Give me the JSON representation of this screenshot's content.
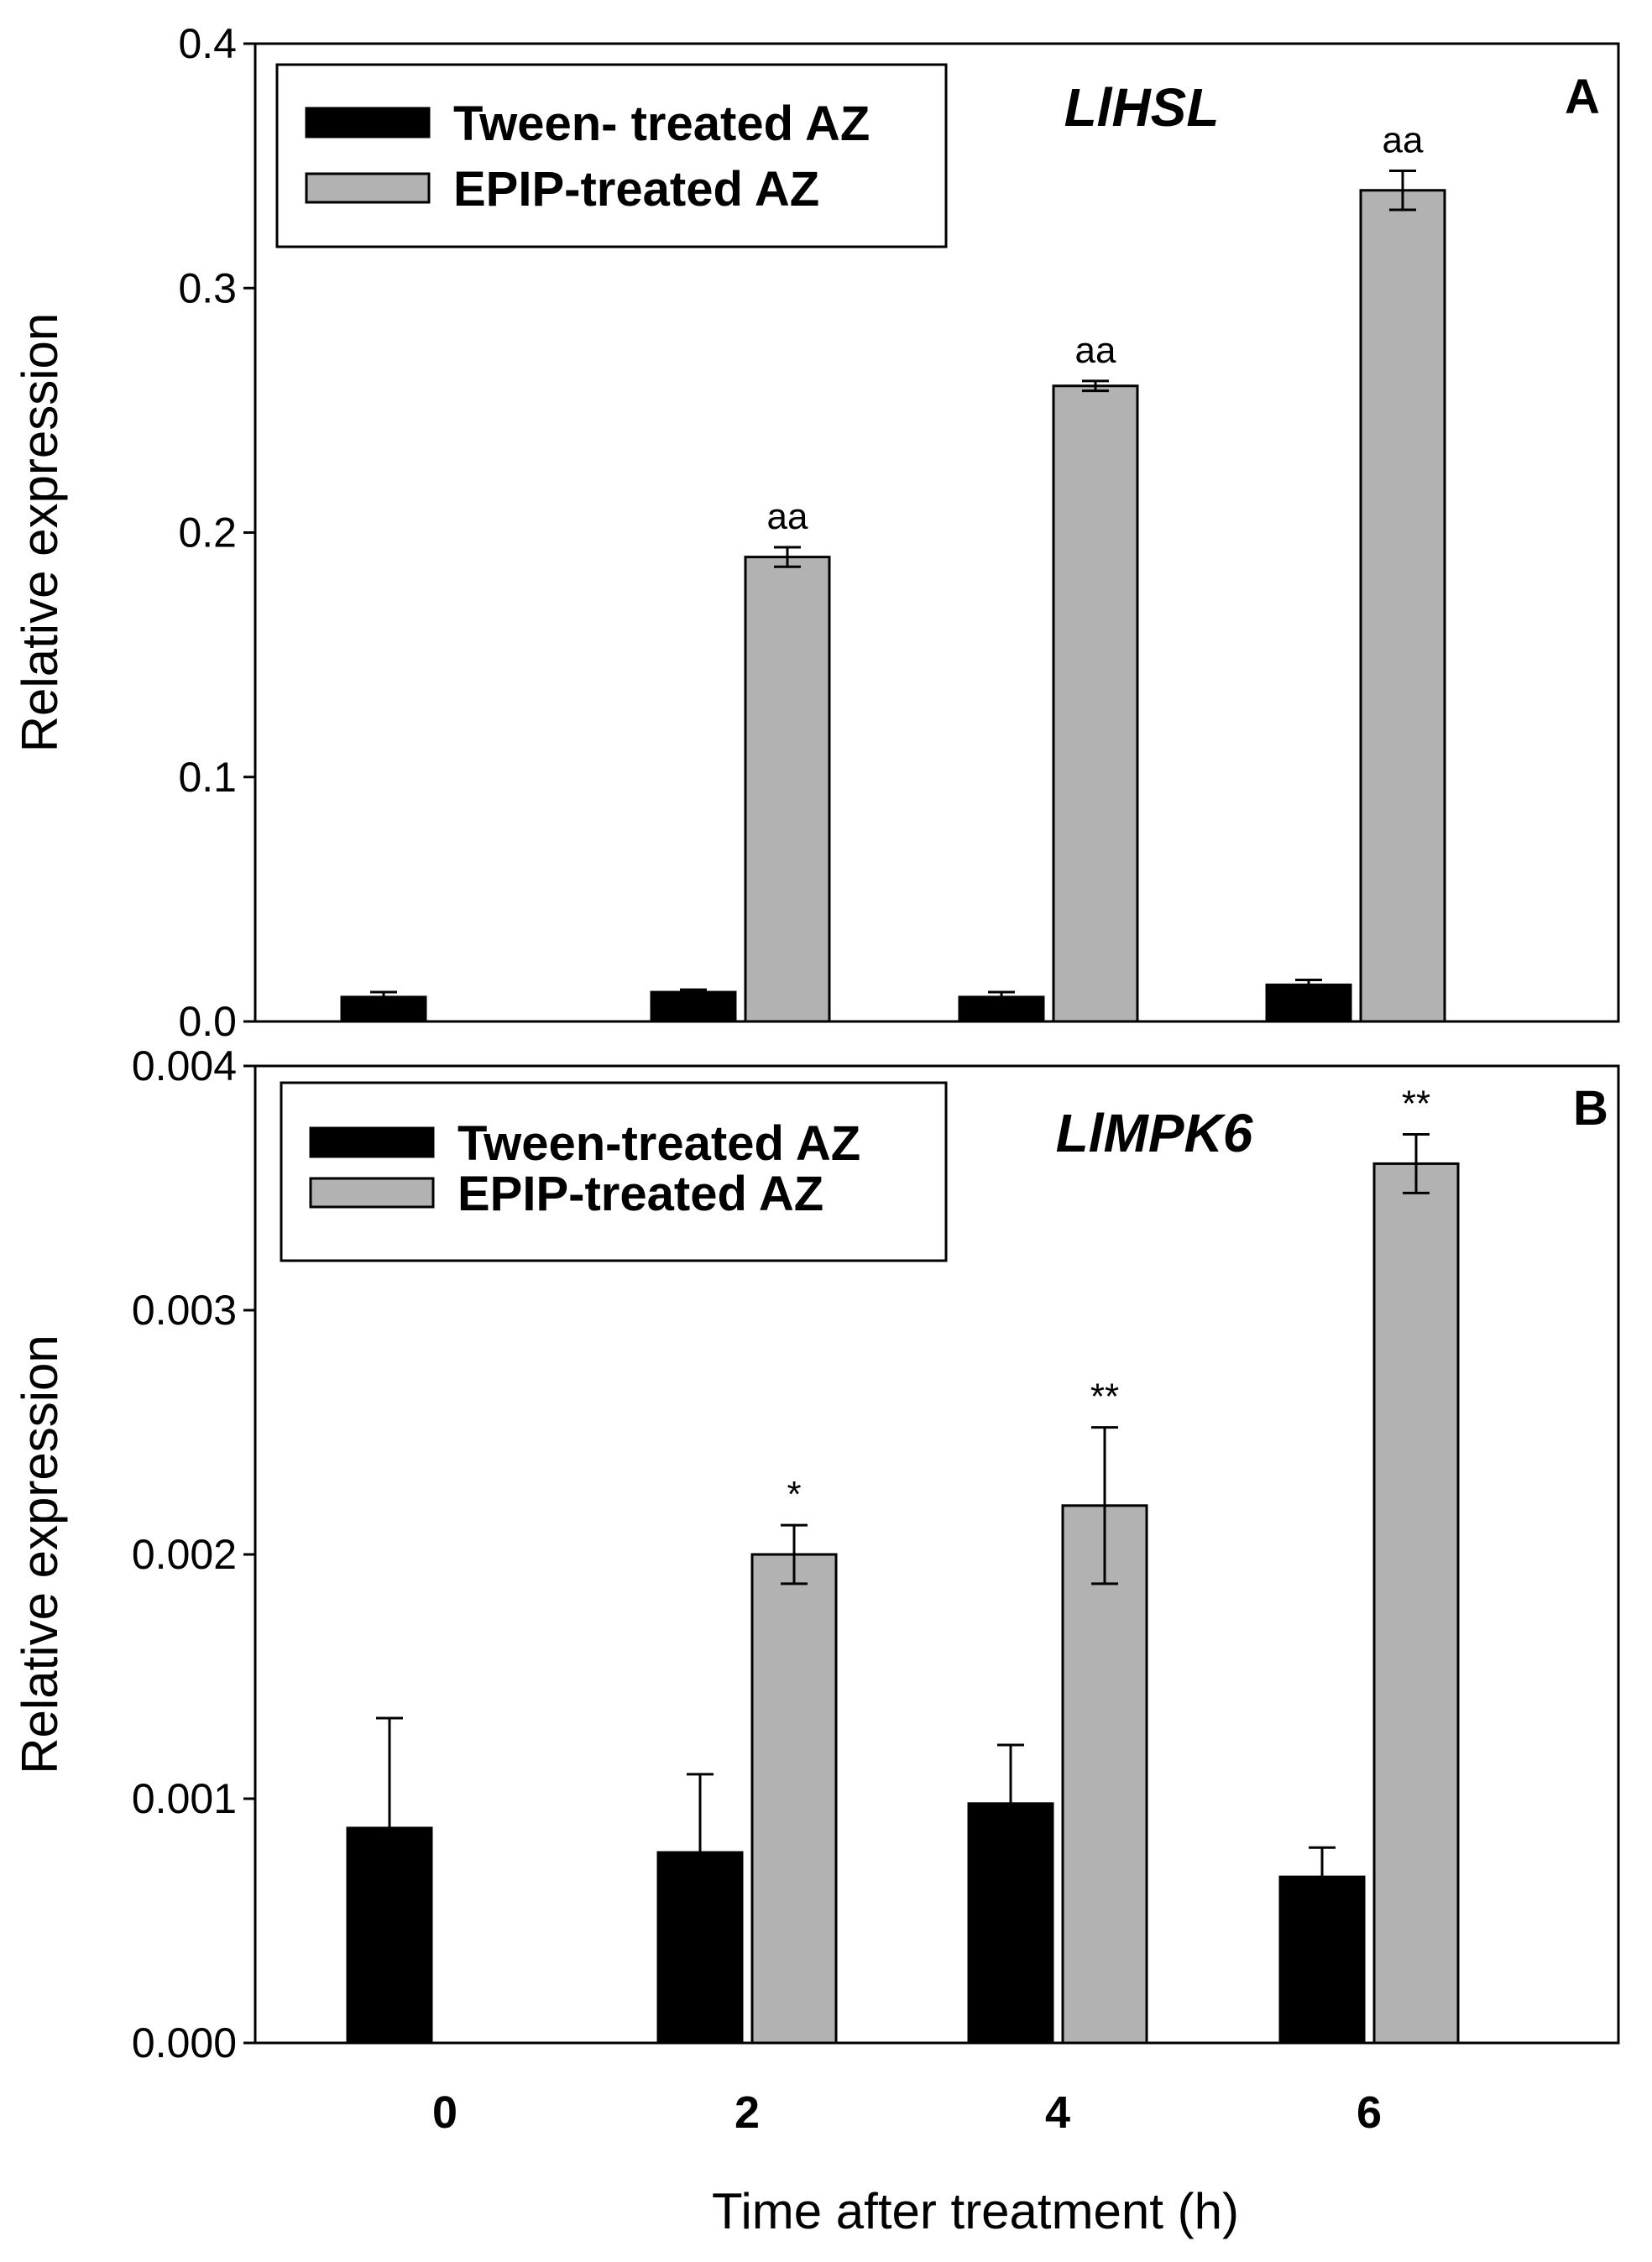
{
  "chart_data": [
    {
      "type": "bar",
      "panel": "A",
      "gene": "LlHSL",
      "ylabel": "Relative expression",
      "ylim": [
        0,
        0.4
      ],
      "yticks": [
        "0.0",
        "0.1",
        "0.2",
        "0.3",
        "0.4"
      ],
      "categories": [
        "0",
        "2",
        "4",
        "6"
      ],
      "series": [
        {
          "name": "Tween- treated AZ",
          "color": "#000000",
          "values": [
            0.01,
            0.012,
            0.01,
            0.015
          ],
          "errors": [
            0.002,
            0.001,
            0.002,
            0.002
          ]
        },
        {
          "name": "EPIP-treated AZ",
          "color": "#b2b2b2",
          "values": [
            null,
            0.19,
            0.26,
            0.34
          ],
          "errors": [
            null,
            0.004,
            0.002,
            0.008
          ]
        }
      ],
      "annotations": [
        null,
        "aa",
        "aa",
        "aa"
      ]
    },
    {
      "type": "bar",
      "panel": "B",
      "gene": "LlMPK6",
      "ylabel": "Relative expression",
      "xlabel": "Time after treatment (h)",
      "ylim": [
        0,
        0.004
      ],
      "yticks": [
        "0.000",
        "0.001",
        "0.002",
        "0.003",
        "0.004"
      ],
      "categories": [
        "0",
        "2",
        "4",
        "6"
      ],
      "series": [
        {
          "name": "Tween-treated AZ",
          "color": "#000000",
          "values": [
            0.00088,
            0.00078,
            0.00098,
            0.00068
          ],
          "errors": [
            0.00045,
            0.00032,
            0.00024,
            0.00012
          ]
        },
        {
          "name": "EPIP-treated AZ",
          "color": "#b2b2b2",
          "values": [
            null,
            0.002,
            0.0022,
            0.0036
          ],
          "errors": [
            null,
            0.00012,
            0.00032,
            0.00012
          ]
        }
      ],
      "annotations": [
        null,
        "*",
        "**",
        "**"
      ]
    }
  ]
}
